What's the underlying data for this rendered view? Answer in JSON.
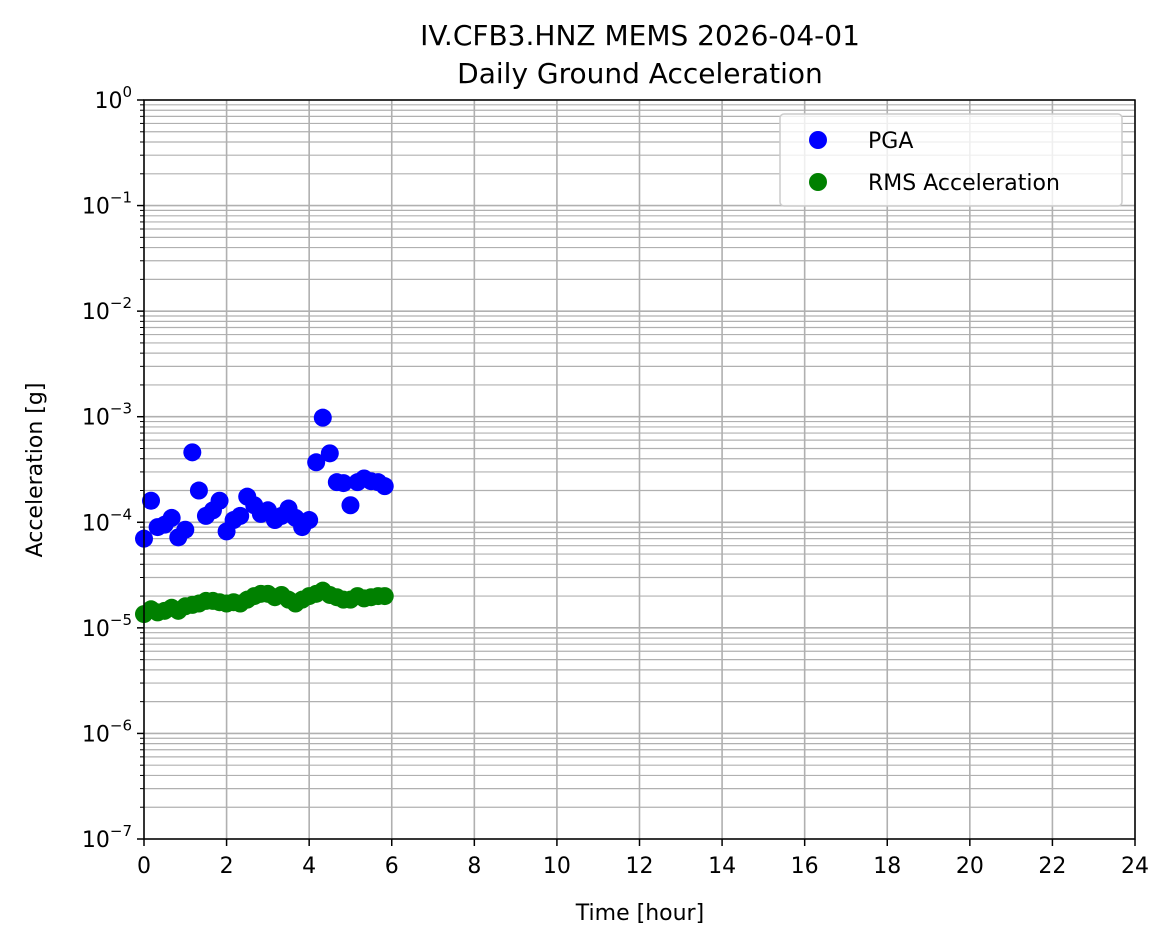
{
  "chart_data": {
    "type": "scatter",
    "title": "IV.CFB3.HNZ MEMS 2026-04-01",
    "subtitle": "Daily Ground Acceleration",
    "xlabel": "Time [hour]",
    "ylabel": "Acceleration [g]",
    "xlim": [
      0,
      24
    ],
    "ylim": [
      1e-07,
      1
    ],
    "yscale": "log",
    "grid": true,
    "legend_position": "top-right",
    "x_ticks": [
      "0",
      "2",
      "4",
      "6",
      "8",
      "10",
      "12",
      "14",
      "16",
      "18",
      "20",
      "22",
      "24"
    ],
    "y_ticks": [
      {
        "base": "10",
        "exp": "−7",
        "value": 1e-07
      },
      {
        "base": "10",
        "exp": "−6",
        "value": 1e-06
      },
      {
        "base": "10",
        "exp": "−5",
        "value": 1e-05
      },
      {
        "base": "10",
        "exp": "−4",
        "value": 0.0001
      },
      {
        "base": "10",
        "exp": "−3",
        "value": 0.001
      },
      {
        "base": "10",
        "exp": "−2",
        "value": 0.01
      },
      {
        "base": "10",
        "exp": "−1",
        "value": 0.1
      },
      {
        "base": "10",
        "exp": "0",
        "value": 1
      }
    ],
    "series": [
      {
        "name": "PGA",
        "color": "#0000ff",
        "points": [
          [
            0.0,
            7e-05
          ],
          [
            0.17,
            0.00016
          ],
          [
            0.33,
            9e-05
          ],
          [
            0.5,
            9.5e-05
          ],
          [
            0.67,
            0.00011
          ],
          [
            0.83,
            7.2e-05
          ],
          [
            1.0,
            8.5e-05
          ],
          [
            1.17,
            0.00046
          ],
          [
            1.33,
            0.0002
          ],
          [
            1.5,
            0.000115
          ],
          [
            1.67,
            0.00013
          ],
          [
            1.83,
            0.00016
          ],
          [
            2.0,
            8.2e-05
          ],
          [
            2.17,
            0.000105
          ],
          [
            2.33,
            0.000115
          ],
          [
            2.5,
            0.000175
          ],
          [
            2.67,
            0.000145
          ],
          [
            2.83,
            0.00012
          ],
          [
            3.0,
            0.00013
          ],
          [
            3.17,
            0.000105
          ],
          [
            3.33,
            0.000115
          ],
          [
            3.5,
            0.000135
          ],
          [
            3.67,
            0.00011
          ],
          [
            3.83,
            9e-05
          ],
          [
            4.0,
            0.000105
          ],
          [
            4.17,
            0.00037
          ],
          [
            4.33,
            0.00098
          ],
          [
            4.5,
            0.00045
          ],
          [
            4.67,
            0.00024
          ],
          [
            4.83,
            0.000235
          ],
          [
            5.0,
            0.000145
          ],
          [
            5.17,
            0.00024
          ],
          [
            5.33,
            0.00026
          ],
          [
            5.5,
            0.000245
          ],
          [
            5.67,
            0.00024
          ],
          [
            5.83,
            0.00022
          ]
        ]
      },
      {
        "name": "RMS Acceleration",
        "color": "#008000",
        "points": [
          [
            0.0,
            1.35e-05
          ],
          [
            0.17,
            1.5e-05
          ],
          [
            0.33,
            1.4e-05
          ],
          [
            0.5,
            1.45e-05
          ],
          [
            0.67,
            1.55e-05
          ],
          [
            0.83,
            1.45e-05
          ],
          [
            1.0,
            1.6e-05
          ],
          [
            1.17,
            1.65e-05
          ],
          [
            1.33,
            1.7e-05
          ],
          [
            1.5,
            1.8e-05
          ],
          [
            1.67,
            1.8e-05
          ],
          [
            1.83,
            1.75e-05
          ],
          [
            2.0,
            1.7e-05
          ],
          [
            2.17,
            1.75e-05
          ],
          [
            2.33,
            1.7e-05
          ],
          [
            2.5,
            1.85e-05
          ],
          [
            2.67,
            2e-05
          ],
          [
            2.83,
            2.1e-05
          ],
          [
            3.0,
            2.1e-05
          ],
          [
            3.17,
            1.95e-05
          ],
          [
            3.33,
            2.05e-05
          ],
          [
            3.5,
            1.85e-05
          ],
          [
            3.67,
            1.7e-05
          ],
          [
            3.83,
            1.85e-05
          ],
          [
            4.0,
            2e-05
          ],
          [
            4.17,
            2.1e-05
          ],
          [
            4.33,
            2.25e-05
          ],
          [
            4.5,
            2.05e-05
          ],
          [
            4.67,
            1.95e-05
          ],
          [
            4.83,
            1.85e-05
          ],
          [
            5.0,
            1.85e-05
          ],
          [
            5.17,
            2e-05
          ],
          [
            5.33,
            1.9e-05
          ],
          [
            5.5,
            1.95e-05
          ],
          [
            5.67,
            2e-05
          ],
          [
            5.83,
            2e-05
          ]
        ]
      }
    ]
  }
}
